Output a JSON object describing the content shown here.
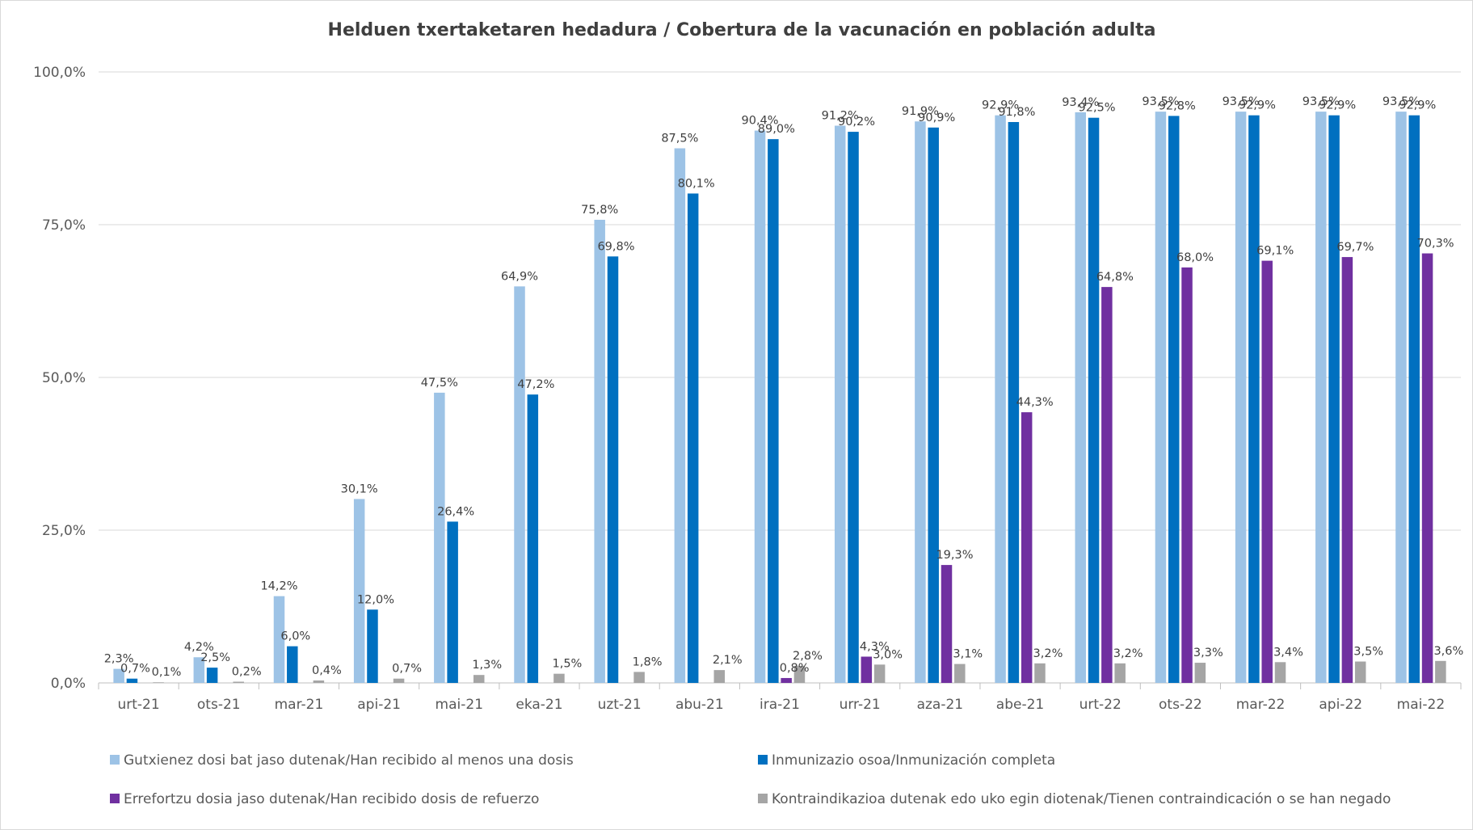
{
  "chart_data": {
    "type": "bar",
    "title": "Helduen txertaketaren hedadura / Cobertura de la vacunación en población adulta",
    "xlabel": "",
    "ylabel": "",
    "ylim": [
      0,
      100
    ],
    "ytick_values": [
      0,
      25,
      50,
      75,
      100
    ],
    "ytick_labels": [
      "0,0%",
      "25,0%",
      "50,0%",
      "75,0%",
      "100,0%"
    ],
    "grid": true,
    "legend_position": "bottom",
    "categories": [
      "urt-21",
      "ots-21",
      "mar-21",
      "api-21",
      "mai-21",
      "eka-21",
      "uzt-21",
      "abu-21",
      "ira-21",
      "urr-21",
      "aza-21",
      "abe-21",
      "urt-22",
      "ots-22",
      "mar-22",
      "api-22",
      "mai-22"
    ],
    "series": [
      {
        "name": "Gutxienez dosi bat jaso dutenak/Han recibido al menos una dosis",
        "color": "#9dc3e6",
        "values": [
          2.3,
          4.2,
          14.2,
          30.1,
          47.5,
          64.9,
          75.8,
          87.5,
          90.4,
          91.2,
          91.9,
          92.9,
          93.4,
          93.5,
          93.5,
          93.5,
          93.5
        ],
        "labels": [
          "2,3%",
          "4,2%",
          "14,2%",
          "30,1%",
          "47,5%",
          "64,9%",
          "75,8%",
          "87,5%",
          "90,4%",
          "91,2%",
          "91,9%",
          "92,9%",
          "93,4%",
          "93,5%",
          "93,5%",
          "93,5%",
          "93,5%"
        ]
      },
      {
        "name": "Inmunizazio osoa/Inmunización completa",
        "color": "#0070c0",
        "values": [
          0.7,
          2.5,
          6.0,
          12.0,
          26.4,
          47.2,
          69.8,
          80.1,
          89.0,
          90.2,
          90.9,
          91.8,
          92.5,
          92.8,
          92.9,
          92.9,
          92.9
        ],
        "labels": [
          "0,7%",
          "2,5%",
          "6,0%",
          "12,0%",
          "26,4%",
          "47,2%",
          "69,8%",
          "80,1%",
          "89,0%",
          "90,2%",
          "90,9%",
          "91,8%",
          "92,5%",
          "92,8%",
          "92,9%",
          "92,9%",
          "92,9%"
        ]
      },
      {
        "name": "Errefortzu dosia jaso dutenak/Han recibido dosis de refuerzo",
        "color": "#7030a0",
        "values": [
          null,
          null,
          null,
          null,
          null,
          null,
          null,
          null,
          0.8,
          4.3,
          19.3,
          44.3,
          64.8,
          68.0,
          69.1,
          69.7,
          70.3
        ],
        "labels": [
          null,
          null,
          null,
          null,
          null,
          null,
          null,
          null,
          "0,8%",
          "4,3%",
          "19,3%",
          "44,3%",
          "64,8%",
          "68,0%",
          "69,1%",
          "69,7%",
          "70,3%"
        ]
      },
      {
        "name": "Kontraindikazioa dutenak edo uko egin diotenak/Tienen contraindicación o se han negado",
        "color": "#a5a5a5",
        "values": [
          0.1,
          0.2,
          0.4,
          0.7,
          1.3,
          1.5,
          1.8,
          2.1,
          2.8,
          3.0,
          3.1,
          3.2,
          3.2,
          3.3,
          3.4,
          3.5,
          3.6
        ],
        "labels": [
          "0,1%",
          "0,2%",
          "0,4%",
          "0,7%",
          "1,3%",
          "1,5%",
          "1,8%",
          "2,1%",
          "2,8%",
          "3,0%",
          "3,1%",
          "3,2%",
          "3,2%",
          "3,3%",
          "3,4%",
          "3,5%",
          "3,6%"
        ]
      }
    ]
  }
}
